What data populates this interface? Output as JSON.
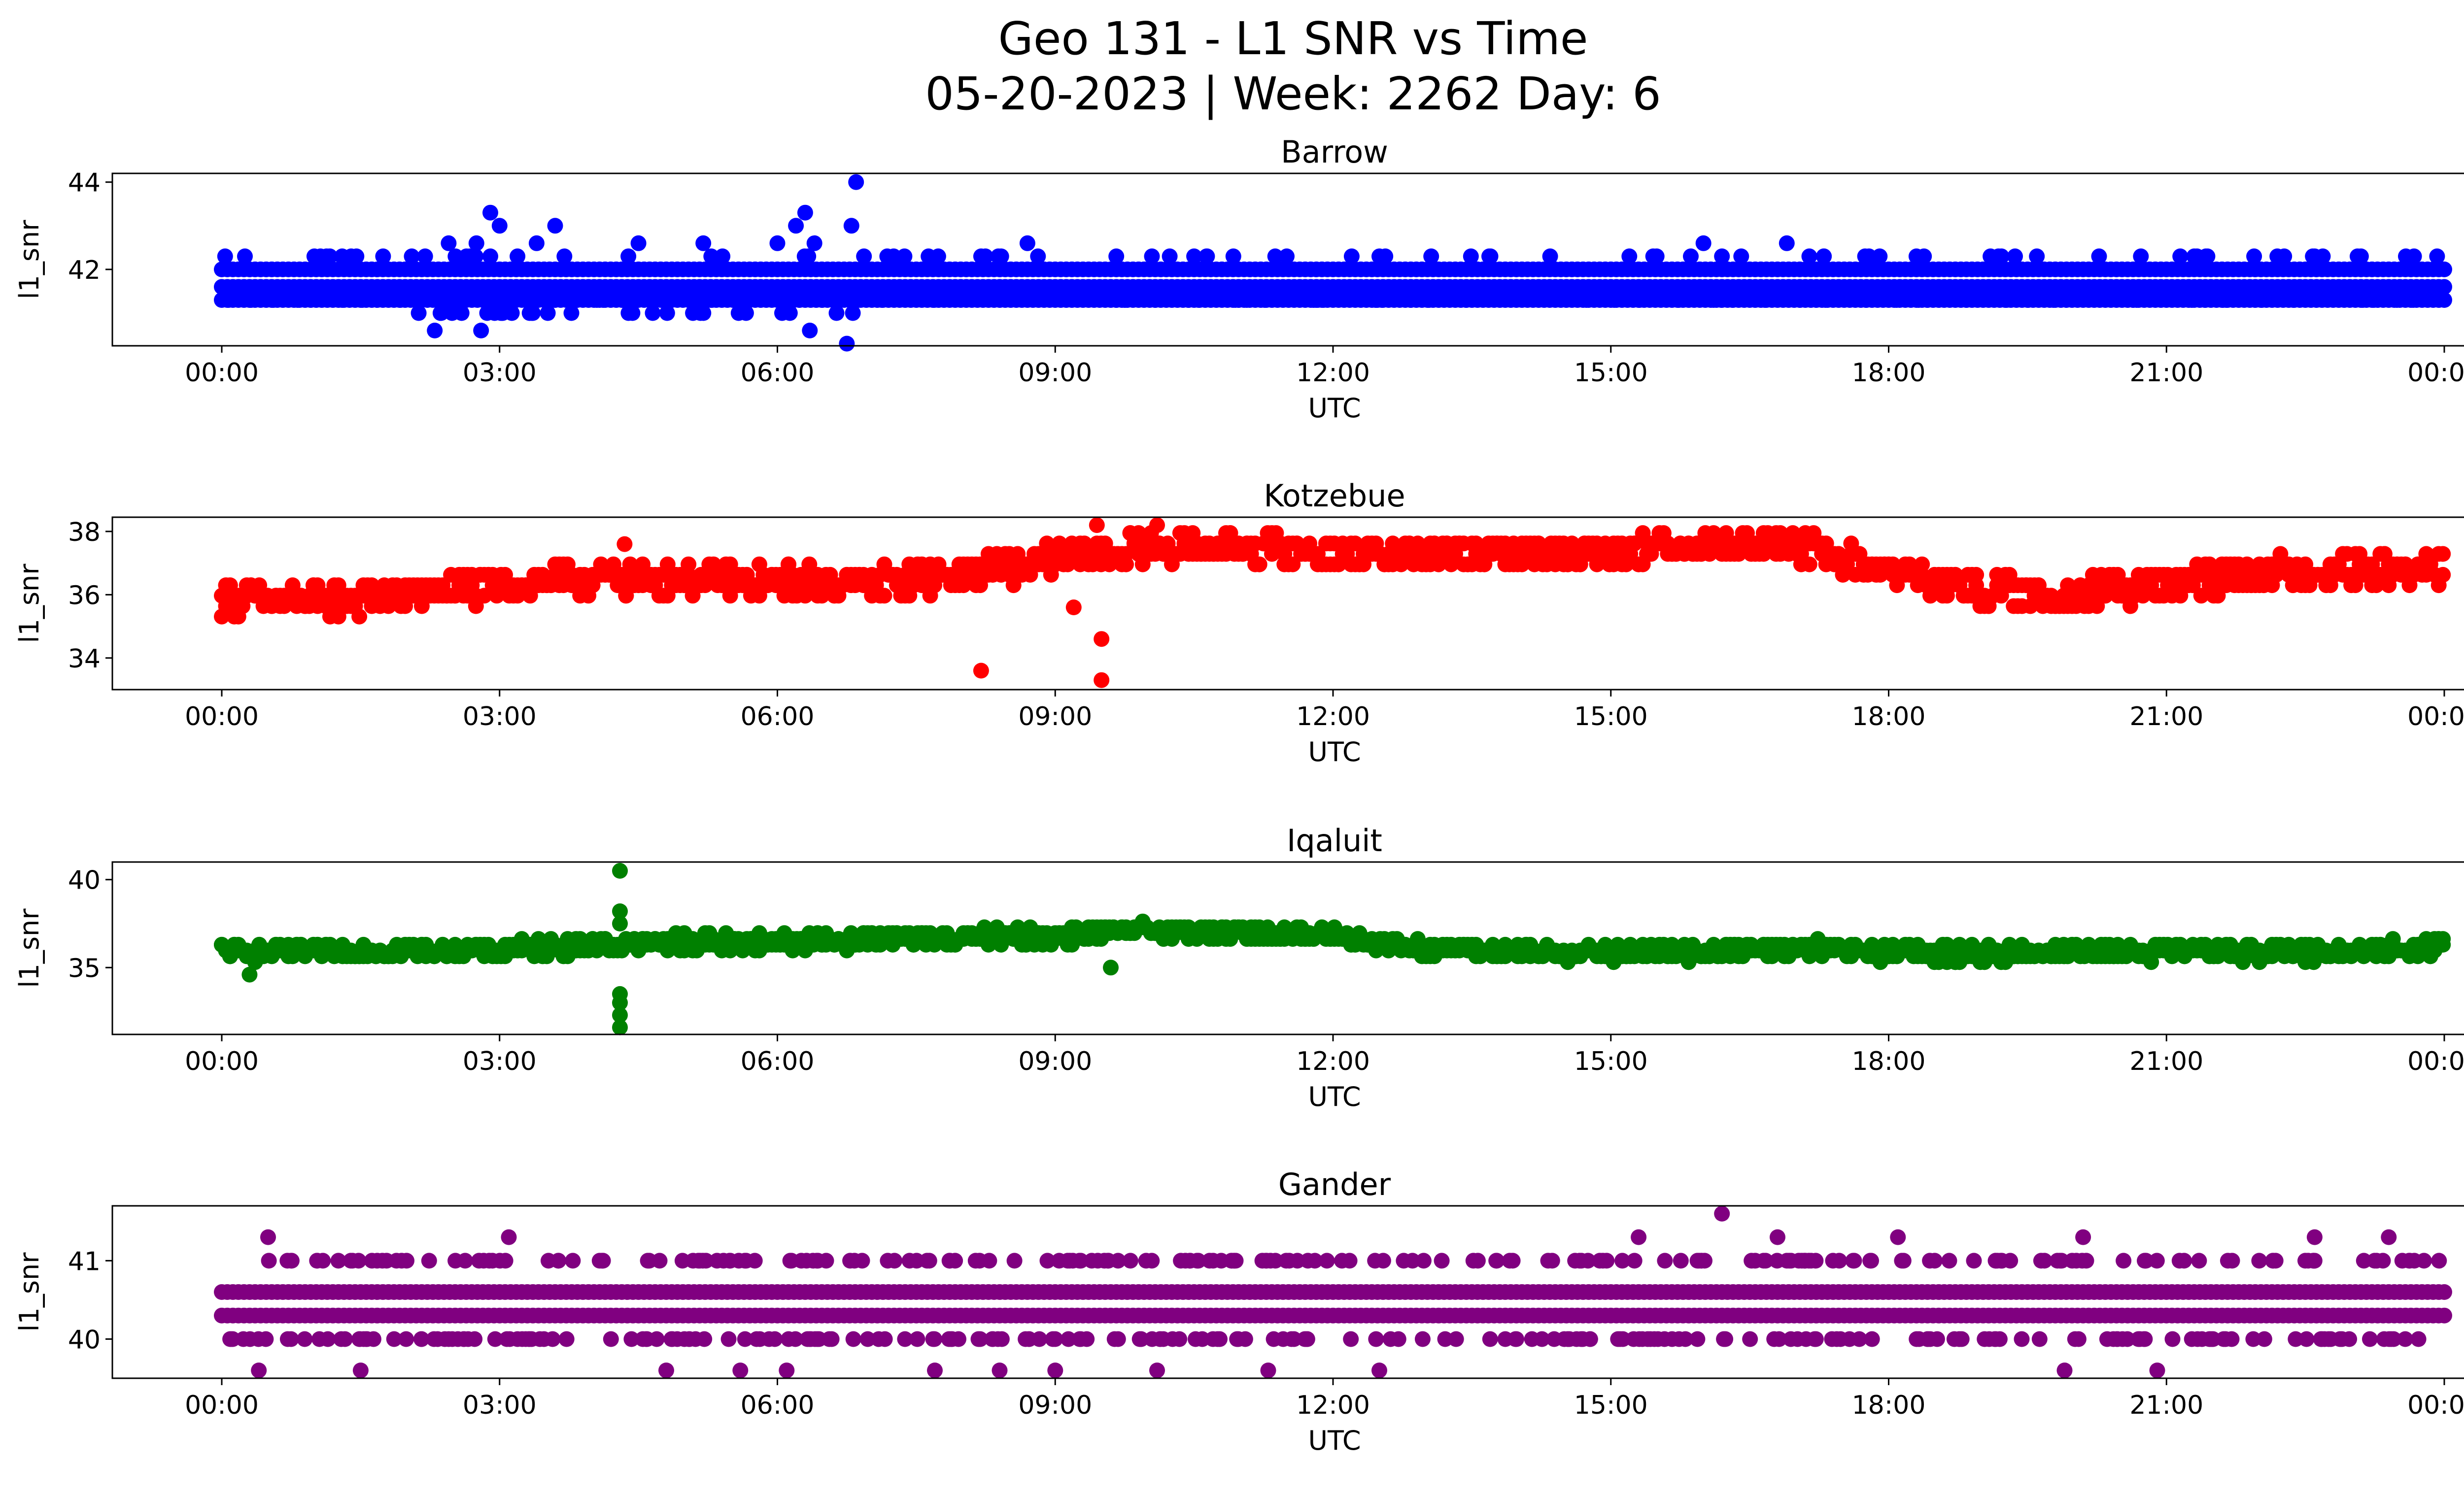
{
  "figure": {
    "title_line1": "Geo 131 - L1 SNR vs Time",
    "title_line2": "05-20-2023 | Week: 2262 Day: 6"
  },
  "chart_data": [
    {
      "type": "scatter",
      "title": "Barrow",
      "xlabel": "UTC",
      "ylabel": "l1_snr",
      "color": "#0000ff",
      "xlim": [
        "2023-05-20 00:00",
        "2023-05-21 00:00"
      ],
      "ylim": [
        40.25,
        44.2
      ],
      "yticks": [
        42,
        44
      ],
      "xticks": [
        "00:00",
        "03:00",
        "06:00",
        "09:00",
        "12:00",
        "15:00",
        "18:00",
        "21:00",
        "00:00"
      ],
      "base_levels": [
        41.3,
        41.6,
        42.0
      ],
      "x_hours": [
        0.25,
        1.0,
        1.3,
        2.45,
        2.75,
        2.9,
        3.4,
        3.7,
        4.5,
        5.2,
        6.0,
        6.2,
        6.4,
        6.8,
        8.2,
        8.7,
        10.5,
        11.5,
        12.5,
        13.7,
        15.2,
        16.0,
        16.2,
        16.9,
        17.3,
        18.3,
        19.6,
        21.3,
        22.6,
        23.1,
        2.3,
        2.8,
        6.35,
        6.75,
        6.85,
        2.9,
        3.0,
        6.3,
        3.6
      ],
      "y": [
        42.3,
        42.3,
        42.3,
        42.6,
        42.6,
        42.3,
        42.6,
        42.3,
        42.6,
        42.6,
        42.6,
        43.0,
        42.6,
        43.0,
        42.3,
        42.6,
        42.3,
        42.3,
        42.3,
        42.3,
        42.3,
        42.6,
        42.3,
        42.6,
        42.3,
        42.3,
        42.3,
        42.3,
        42.3,
        42.3,
        40.6,
        40.6,
        40.6,
        40.3,
        44.0,
        43.3,
        43.0,
        43.3,
        43.0
      ]
    },
    {
      "type": "scatter",
      "title": "Kotzebue",
      "xlabel": "UTC",
      "ylabel": "l1_snr",
      "color": "#ff0000",
      "xlim": [
        "2023-05-20 00:00",
        "2023-05-21 00:00"
      ],
      "ylim": [
        33.0,
        38.45
      ],
      "yticks": [
        34,
        36,
        38
      ],
      "xticks": [
        "00:00",
        "03:00",
        "06:00",
        "09:00",
        "12:00",
        "15:00",
        "18:00",
        "21:00",
        "00:00"
      ],
      "trend_x_hours": [
        0,
        1,
        2,
        3,
        4,
        5,
        6,
        7,
        8,
        9,
        10,
        11,
        12,
        13,
        14,
        15,
        16,
        17,
        18,
        19,
        20,
        21,
        22,
        23,
        24
      ],
      "trend_y": [
        35.9,
        35.8,
        36.0,
        36.3,
        36.5,
        36.5,
        36.4,
        36.4,
        36.6,
        37.1,
        37.5,
        37.5,
        37.3,
        37.3,
        37.3,
        37.4,
        37.6,
        37.5,
        36.8,
        36.1,
        36.0,
        36.3,
        36.7,
        36.8,
        36.8
      ],
      "x_hours": [
        8.2,
        9.2,
        9.5,
        9.5,
        9.45,
        10.1,
        4.35
      ],
      "y": [
        33.6,
        35.6,
        34.6,
        33.3,
        38.2,
        38.2,
        37.6
      ]
    },
    {
      "type": "scatter",
      "title": "Iqaluit",
      "xlabel": "UTC",
      "ylabel": "l1_snr",
      "color": "#008000",
      "xlim": [
        "2023-05-20 00:00",
        "2023-05-21 00:00"
      ],
      "ylim": [
        31.2,
        41.0
      ],
      "yticks": [
        35,
        40
      ],
      "xticks": [
        "00:00",
        "03:00",
        "06:00",
        "09:00",
        "12:00",
        "15:00",
        "18:00",
        "21:00",
        "00:00"
      ],
      "trend_x_hours": [
        0,
        1,
        2,
        3,
        4,
        5,
        6,
        7,
        8,
        9,
        10,
        11,
        12,
        13,
        14,
        15,
        16,
        17,
        18,
        19,
        20,
        21,
        22,
        23,
        24
      ],
      "trend_y": [
        35.9,
        35.9,
        36.0,
        36.0,
        36.3,
        36.4,
        36.5,
        36.6,
        36.7,
        36.8,
        37.1,
        37.0,
        36.8,
        36.1,
        35.9,
        35.8,
        35.9,
        36.1,
        35.8,
        35.8,
        35.9,
        35.9,
        35.9,
        35.9,
        36.3
      ],
      "x_hours": [
        4.3,
        4.3,
        4.3,
        4.3,
        4.3,
        4.3,
        4.3,
        9.6,
        0.3
      ],
      "y": [
        40.5,
        38.2,
        37.5,
        33.5,
        33.0,
        32.3,
        31.6,
        35.0,
        34.6
      ]
    },
    {
      "type": "scatter",
      "title": "Gander",
      "xlabel": "UTC",
      "ylabel": "l1_snr",
      "color": "#800080",
      "xlim": [
        "2023-05-20 00:00",
        "2023-05-21 00:00"
      ],
      "ylim": [
        39.5,
        41.7
      ],
      "yticks": [
        40,
        41
      ],
      "xticks": [
        "00:00",
        "03:00",
        "06:00",
        "09:00",
        "12:00",
        "15:00",
        "18:00",
        "21:00",
        "00:00"
      ],
      "base_levels": [
        40.3,
        40.6
      ],
      "x_hours": [
        0.5,
        3.1,
        16.2,
        15.3,
        16.8,
        18.1,
        20.1,
        22.6,
        23.4,
        0.4,
        1.5,
        4.8,
        5.6,
        6.1,
        7.7,
        8.4,
        9.0,
        10.1,
        11.3,
        12.5,
        19.9,
        20.9
      ],
      "y": [
        41.3,
        41.3,
        41.6,
        41.3,
        41.3,
        41.3,
        41.3,
        41.3,
        41.3,
        39.6,
        39.6,
        39.6,
        39.6,
        39.6,
        39.6,
        39.6,
        39.6,
        39.6,
        39.6,
        39.6,
        39.6,
        39.6
      ]
    }
  ]
}
